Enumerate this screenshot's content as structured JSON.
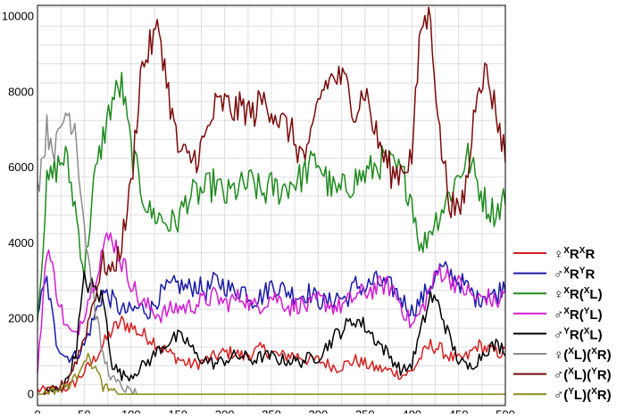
{
  "chart_data": {
    "type": "line",
    "title": "",
    "xlabel": "",
    "ylabel": "",
    "xlim": [
      0,
      500
    ],
    "ylim": [
      -300,
      10300
    ],
    "x_ticks": [
      0,
      50,
      100,
      150,
      200,
      250,
      300,
      350,
      400,
      450,
      500
    ],
    "y_ticks": [
      0,
      2000,
      4000,
      6000,
      8000,
      10000
    ],
    "x_tick_labels": [
      "0",
      "50",
      "100",
      "150",
      "200",
      "250",
      "300",
      "350",
      "400",
      "450",
      "500"
    ],
    "y_tick_labels": [
      "0",
      "2000",
      "4000",
      "6000",
      "8000",
      "10000"
    ],
    "grid": true,
    "legend_position": "right",
    "x": [
      0,
      10,
      20,
      30,
      40,
      50,
      60,
      70,
      80,
      90,
      100,
      110,
      120,
      130,
      140,
      150,
      160,
      170,
      180,
      190,
      200,
      210,
      220,
      230,
      240,
      250,
      260,
      270,
      280,
      290,
      300,
      310,
      320,
      330,
      340,
      350,
      360,
      370,
      380,
      390,
      400,
      410,
      420,
      430,
      440,
      450,
      460,
      470,
      480,
      490,
      500
    ],
    "series": [
      {
        "name": "♀XRXR",
        "color": "#d42020",
        "values": [
          100,
          100,
          100,
          150,
          300,
          600,
          900,
          1300,
          1700,
          1900,
          1800,
          1600,
          1500,
          1300,
          1100,
          950,
          800,
          800,
          900,
          1000,
          1100,
          1100,
          1000,
          1100,
          1200,
          1100,
          1000,
          1050,
          1000,
          900,
          900,
          800,
          700,
          800,
          900,
          800,
          700,
          650,
          600,
          500,
          600,
          1000,
          1300,
          1200,
          1000,
          900,
          1000,
          1300,
          1200,
          1100,
          1100
        ]
      },
      {
        "name": "♂XRYR",
        "color": "#1a1aa8",
        "values": [
          2200,
          3000,
          1400,
          1000,
          1000,
          1300,
          2000,
          2700,
          2500,
          2200,
          2200,
          2300,
          2200,
          2600,
          2800,
          2900,
          2800,
          2900,
          2700,
          3000,
          2900,
          2700,
          2800,
          2500,
          2600,
          2900,
          2800,
          2700,
          2600,
          2700,
          2500,
          2400,
          2600,
          2500,
          2900,
          2800,
          3000,
          2900,
          2800,
          2500,
          2200,
          2500,
          2900,
          3300,
          3200,
          3000,
          2800,
          2500,
          2700,
          2600,
          3000
        ]
      },
      {
        "name": "♀XR(XL)",
        "color": "#1f8a1f",
        "values": [
          2000,
          5500,
          6000,
          6300,
          5000,
          3200,
          5500,
          6800,
          7800,
          8200,
          6500,
          5500,
          4800,
          4700,
          4500,
          4600,
          5200,
          5300,
          5400,
          5600,
          5200,
          5400,
          5500,
          5600,
          5300,
          5500,
          5400,
          5600,
          5700,
          6000,
          6200,
          5600,
          5300,
          5500,
          5700,
          5800,
          6000,
          6200,
          6000,
          5800,
          5200,
          3800,
          4400,
          4800,
          5300,
          5800,
          6300,
          5600,
          5000,
          4800,
          5300
        ]
      },
      {
        "name": "♂XR(YL)",
        "color": "#d21cd2",
        "values": [
          500,
          4000,
          2800,
          1800,
          1500,
          2200,
          3000,
          3900,
          4200,
          3500,
          3000,
          2400,
          2300,
          2100,
          2200,
          2300,
          2300,
          2400,
          2500,
          2600,
          2400,
          2500,
          2600,
          2300,
          2400,
          2600,
          2500,
          2300,
          2400,
          2300,
          2500,
          2400,
          2300,
          2400,
          2600,
          2700,
          2800,
          2900,
          2800,
          2300,
          1800,
          2200,
          2800,
          3300,
          3100,
          2900,
          2700,
          2500,
          2600,
          2400,
          2700
        ]
      },
      {
        "name": "♂YR(XL)",
        "color": "#000000",
        "values": [
          0,
          50,
          100,
          300,
          1000,
          3000,
          2800,
          2500,
          800,
          500,
          500,
          700,
          900,
          1200,
          1400,
          1500,
          1400,
          1000,
          900,
          800,
          900,
          1000,
          1000,
          900,
          1000,
          1000,
          900,
          900,
          850,
          950,
          1000,
          1300,
          1600,
          1800,
          2000,
          1800,
          1500,
          1200,
          900,
          600,
          800,
          1700,
          2600,
          2300,
          1500,
          900,
          700,
          900,
          1200,
          1300,
          1200
        ]
      },
      {
        "name": "♀(XL)(XR)",
        "color": "#8c8c8c",
        "values": [
          5500,
          7000,
          6500,
          7500,
          7200,
          4500,
          2500,
          1000,
          400,
          200,
          50,
          0,
          0,
          0,
          0,
          0,
          0,
          0,
          0,
          0,
          0,
          0,
          0,
          0,
          0,
          0,
          0,
          0,
          0,
          0,
          0,
          0,
          0,
          0,
          0,
          0,
          0,
          0,
          0,
          0,
          0,
          0,
          0,
          0,
          0,
          0,
          0,
          0,
          0,
          0,
          0
        ]
      },
      {
        "name": "♂(XL)(YR)",
        "color": "#7a0a0a",
        "values": [
          0,
          50,
          150,
          300,
          800,
          1500,
          2500,
          3500,
          3200,
          4000,
          5500,
          8500,
          9200,
          9700,
          8000,
          6500,
          6200,
          6300,
          6800,
          7600,
          7700,
          7500,
          7600,
          7400,
          7800,
          7600,
          7200,
          7000,
          6400,
          6300,
          7800,
          8300,
          8400,
          8200,
          7500,
          8100,
          7000,
          6300,
          5800,
          6000,
          6300,
          9800,
          10000,
          6800,
          5200,
          4700,
          5800,
          8300,
          8500,
          7500,
          6300
        ]
      },
      {
        "name": "♂(YL)(XR)",
        "color": "#8a8a1c",
        "values": [
          0,
          50,
          100,
          200,
          400,
          1000,
          800,
          200,
          50,
          0,
          0,
          0,
          0,
          0,
          0,
          0,
          0,
          0,
          0,
          0,
          0,
          0,
          0,
          0,
          0,
          0,
          0,
          0,
          0,
          0,
          0,
          0,
          0,
          0,
          0,
          0,
          0,
          0,
          0,
          0,
          0,
          0,
          0,
          0,
          0,
          0,
          0,
          0,
          0,
          0,
          0
        ]
      }
    ],
    "legend_entries": [
      {
        "sym": "♀",
        "p1": "X",
        "b1": "R",
        "p2": "X",
        "b2": "R",
        "color": "#d42020",
        "style": "sup"
      },
      {
        "sym": "♂",
        "p1": "X",
        "b1": "R",
        "p2": "Y",
        "b2": "R",
        "color": "#1a1aa8",
        "style": "sup"
      },
      {
        "sym": "♀",
        "p1": "X",
        "b1": "R(",
        "p2": "X",
        "b2": "L)",
        "color": "#1f8a1f",
        "style": "sup"
      },
      {
        "sym": "♂",
        "p1": "X",
        "b1": "R(",
        "p2": "Y",
        "b2": "L)",
        "color": "#d21cd2",
        "style": "sup"
      },
      {
        "sym": "♂",
        "p1": "Y",
        "b1": "R(",
        "p2": "X",
        "b2": "L)",
        "color": "#000000",
        "style": "sup"
      },
      {
        "sym": "♀",
        "p1": "X",
        "b1": "L)",
        "p2": "X",
        "b2": "R)",
        "color": "#8c8c8c",
        "style": "paren"
      },
      {
        "sym": "♂",
        "p1": "X",
        "b1": "L)",
        "p2": "Y",
        "b2": "R)",
        "color": "#7a0a0a",
        "style": "paren"
      },
      {
        "sym": "♂",
        "p1": "Y",
        "b1": "L)",
        "p2": "X",
        "b2": "R)",
        "color": "#8a8a1c",
        "style": "paren"
      }
    ]
  }
}
